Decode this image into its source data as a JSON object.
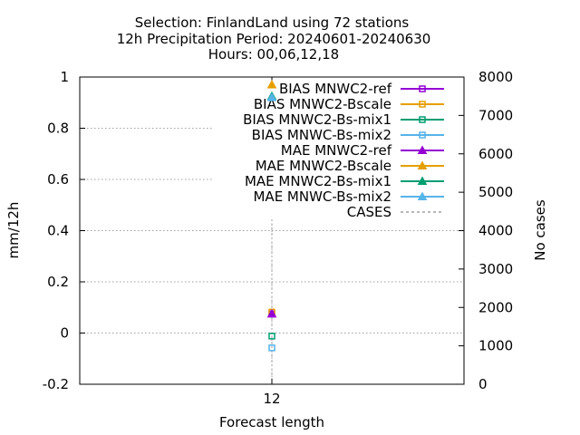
{
  "title_lines": [
    "Selection: FinlandLand using    72 stations",
    "12h Precipitation    Period: 20240601-20240630",
    "Hours: 00,06,12,18"
  ],
  "chart_data": {
    "type": "scatter",
    "xlabel": "Forecast length",
    "ylabel": "mm/12h",
    "y2label": "No cases",
    "categories": [
      "12"
    ],
    "ylim": [
      -0.2,
      1
    ],
    "yticks": [
      "-0.2",
      "0",
      "0.2",
      "0.4",
      "0.6",
      "0.8",
      "1"
    ],
    "y2lim": [
      0,
      8000
    ],
    "y2ticks": [
      "0",
      "1000",
      "2000",
      "3000",
      "4000",
      "5000",
      "6000",
      "7000",
      "8000"
    ],
    "grid": true,
    "legend_position": "top-right",
    "series": [
      {
        "name": "BIAS MNWC2-ref",
        "values": [
          0.075
        ],
        "color": "#9400d3",
        "marker": "square-open",
        "axis": "y"
      },
      {
        "name": "BIAS MNWC2-Bscale",
        "values": [
          0.082
        ],
        "color": "#e69f00",
        "marker": "square-open",
        "axis": "y"
      },
      {
        "name": "BIAS MNWC2-Bs-mix1",
        "values": [
          -0.012
        ],
        "color": "#009e73",
        "marker": "square-open",
        "axis": "y"
      },
      {
        "name": "BIAS MNWC-Bs-mix2",
        "values": [
          -0.058
        ],
        "color": "#56b4e9",
        "marker": "square-open",
        "axis": "y"
      },
      {
        "name": "MAE MNWC2-ref",
        "values": [
          0.075
        ],
        "color": "#9400d3",
        "marker": "triangle-filled",
        "axis": "y"
      },
      {
        "name": "MAE MNWC2-Bscale",
        "values": [
          0.97
        ],
        "color": "#e69f00",
        "marker": "triangle-filled",
        "axis": "y"
      },
      {
        "name": "MAE MNWC2-Bs-mix1",
        "values": [
          0.925
        ],
        "color": "#009e73",
        "marker": "triangle-filled",
        "axis": "y"
      },
      {
        "name": "MAE MNWC-Bs-mix2",
        "values": [
          0.92
        ],
        "color": "#56b4e9",
        "marker": "triangle-filled",
        "axis": "y"
      },
      {
        "name": "CASES",
        "values": [
          4300
        ],
        "color": "#a0a0a0",
        "marker": "dashed-line",
        "axis": "y2"
      }
    ]
  }
}
